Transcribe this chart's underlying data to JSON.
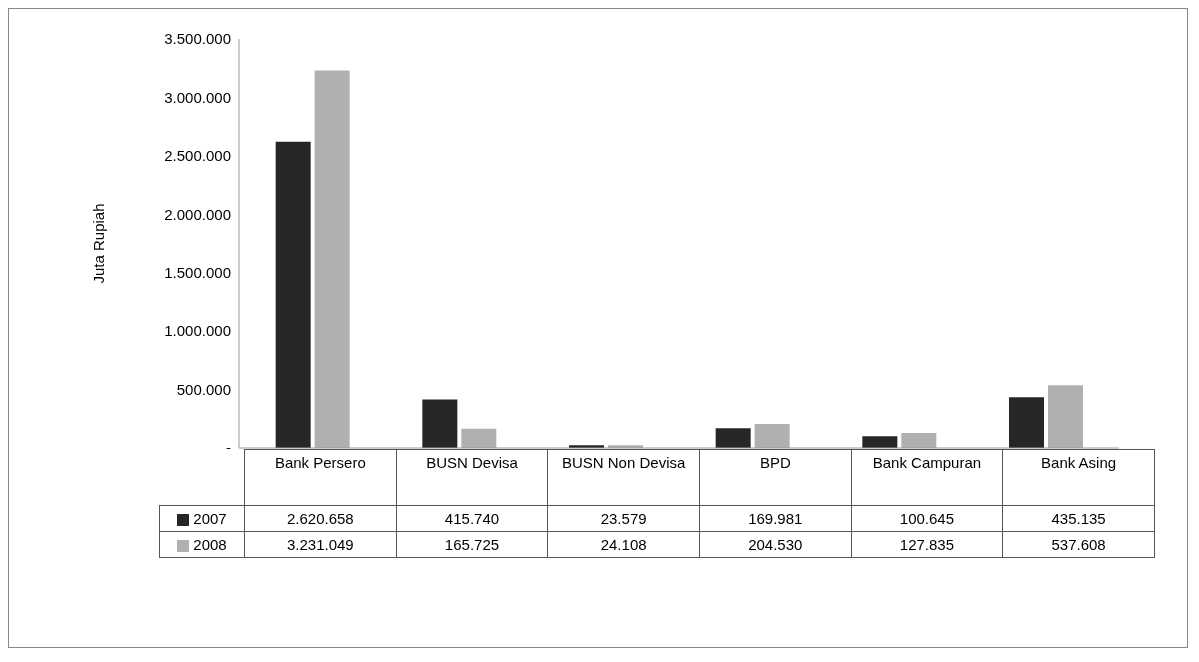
{
  "chart_data": {
    "type": "bar",
    "ylabel": "Juta Rupiah",
    "categories": [
      "Bank Persero",
      "BUSN Devisa",
      "BUSN Non Devisa",
      "BPD",
      "Bank Campuran",
      "Bank Asing"
    ],
    "series": [
      {
        "name": "2007",
        "color": "#262626",
        "values": [
          2620658,
          415740,
          23579,
          169981,
          100645,
          435135
        ],
        "value_labels": [
          "2.620.658",
          "415.740",
          "23.579",
          "169.981",
          "100.645",
          "435.135"
        ]
      },
      {
        "name": "2008",
        "color": "#b0b0b0",
        "values": [
          3231049,
          165725,
          24108,
          204530,
          127835,
          537608
        ],
        "value_labels": [
          "3.231.049",
          "165.725",
          "24.108",
          "204.530",
          "127.835",
          "537.608"
        ]
      }
    ],
    "ylim": [
      0,
      3500000
    ],
    "yticks": [
      {
        "value": 0,
        "label": "-"
      },
      {
        "value": 500000,
        "label": "500.000"
      },
      {
        "value": 1000000,
        "label": "1.000.000"
      },
      {
        "value": 1500000,
        "label": "1.500.000"
      },
      {
        "value": 2000000,
        "label": "2.000.000"
      },
      {
        "value": 2500000,
        "label": "2.500.000"
      },
      {
        "value": 3000000,
        "label": "3.000.000"
      },
      {
        "value": 3500000,
        "label": "3.500.000"
      }
    ],
    "grid": false,
    "legend": "bottom left"
  }
}
